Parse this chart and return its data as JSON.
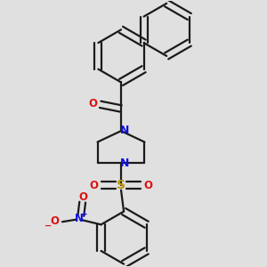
{
  "bg_color": "#e0e0e0",
  "bond_color": "#1a1a1a",
  "N_color": "#1010dd",
  "O_color": "#dd1010",
  "S_color": "#b8960a",
  "lw": 1.6,
  "dbo": 0.013,
  "ring_r": 0.095,
  "xlim": [
    0.05,
    0.98
  ],
  "ylim": [
    0.02,
    0.98
  ]
}
